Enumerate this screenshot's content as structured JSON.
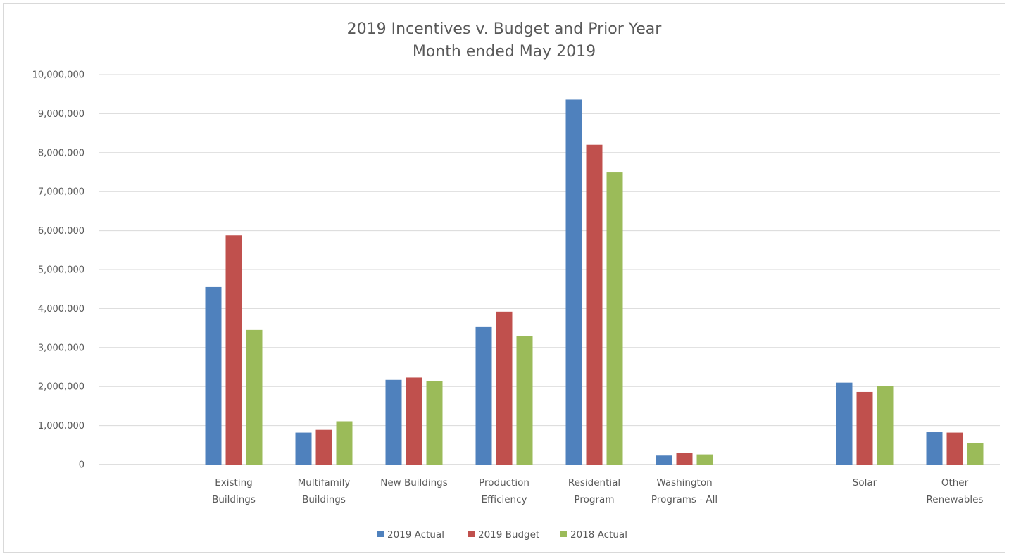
{
  "chart_data": {
    "type": "bar",
    "title": [
      "2019 Incentives v. Budget and Prior Year",
      "Month ended May 2019"
    ],
    "categories": [
      [
        "Existing",
        "Buildings"
      ],
      [
        "Multifamily",
        "Buildings"
      ],
      [
        "New Buildings"
      ],
      [
        "Production",
        "Efficiency"
      ],
      [
        "Residential",
        "Program"
      ],
      [
        "Washington",
        "Programs - All"
      ],
      [],
      [
        "Solar"
      ],
      [
        "Other",
        "Renewables"
      ]
    ],
    "series": [
      {
        "name": "2019 Actual",
        "color": "#4f81bd",
        "values": [
          4550000,
          820000,
          2170000,
          3540000,
          9360000,
          230000,
          null,
          2100000,
          830000
        ]
      },
      {
        "name": "2019 Budget",
        "color": "#c0504d",
        "values": [
          5880000,
          890000,
          2230000,
          3920000,
          8200000,
          290000,
          null,
          1860000,
          820000
        ]
      },
      {
        "name": "2018 Actual",
        "color": "#9bbb59",
        "values": [
          3450000,
          1110000,
          2140000,
          3290000,
          7490000,
          260000,
          null,
          2010000,
          550000
        ]
      }
    ],
    "ylim": [
      0,
      10000000
    ],
    "yticks": [
      0,
      1000000,
      2000000,
      3000000,
      4000000,
      5000000,
      6000000,
      7000000,
      8000000,
      9000000,
      10000000
    ],
    "ytick_labels": [
      "0",
      "1,000,000",
      "2,000,000",
      "3,000,000",
      "4,000,000",
      "5,000,000",
      "6,000,000",
      "7,000,000",
      "8,000,000",
      "9,000,000",
      "10,000,000"
    ],
    "grid": true,
    "legend_position": "bottom"
  }
}
